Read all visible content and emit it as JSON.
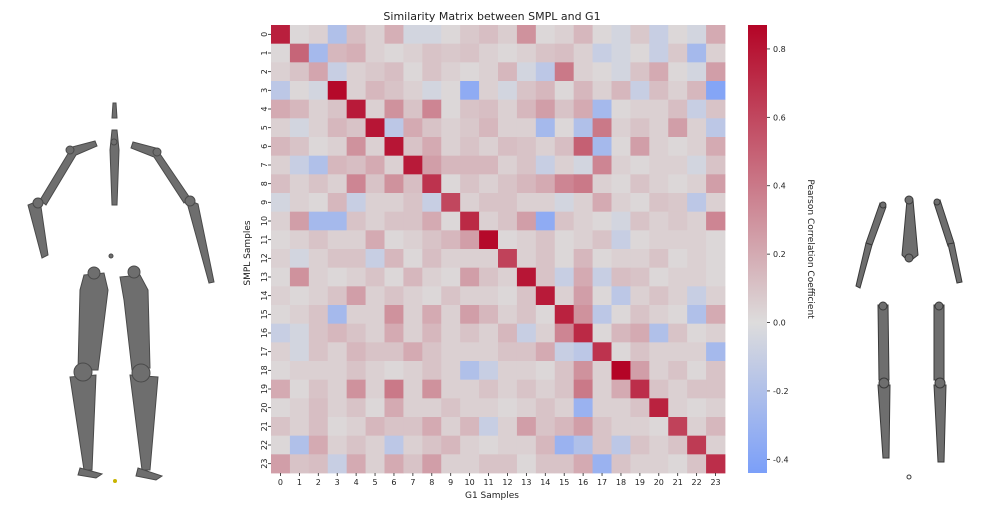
{
  "chart_data": {
    "type": "heatmap",
    "title": "Similarity Matrix between SMPL and G1",
    "xlabel": "G1 Samples",
    "ylabel": "SMPL Samples",
    "x_categories": [
      "0",
      "1",
      "2",
      "3",
      "4",
      "5",
      "6",
      "7",
      "8",
      "9",
      "10",
      "11",
      "12",
      "13",
      "14",
      "15",
      "16",
      "17",
      "18",
      "19",
      "20",
      "21",
      "22",
      "23"
    ],
    "y_categories": [
      "0",
      "1",
      "2",
      "3",
      "4",
      "5",
      "6",
      "7",
      "8",
      "9",
      "10",
      "11",
      "12",
      "13",
      "14",
      "15",
      "16",
      "17",
      "18",
      "19",
      "20",
      "21",
      "22",
      "23"
    ],
    "colorbar": {
      "label": "Pearson Correlation Coefficient",
      "vmin": -0.44,
      "vmax": 0.87,
      "ticks": [
        "-0.4",
        "-0.2",
        "0.0",
        "0.2",
        "0.4",
        "0.6",
        "0.8"
      ],
      "tick_values": [
        -0.4,
        -0.2,
        0.0,
        0.2,
        0.4,
        0.6,
        0.8
      ],
      "colormap": "coolwarm",
      "low_color": "#7b9ff9",
      "mid_color": "#dddcdc",
      "high_color": "#b40426"
    },
    "values": [
      [
        0.76,
        0.02,
        0.05,
        -0.2,
        0.12,
        0.05,
        0.18,
        -0.05,
        -0.05,
        0.02,
        0.08,
        0.12,
        0.06,
        0.3,
        0.02,
        0.05,
        0.15,
        0.02,
        -0.05,
        0.08,
        -0.1,
        0.02,
        -0.05,
        0.2
      ],
      [
        0.02,
        0.48,
        -0.25,
        0.15,
        0.18,
        0.05,
        0.02,
        0.05,
        0.1,
        0.08,
        0.1,
        0.05,
        0.02,
        0.05,
        0.1,
        0.12,
        0.05,
        -0.1,
        -0.05,
        0.02,
        -0.1,
        0.08,
        -0.25,
        0.05
      ],
      [
        0.05,
        0.1,
        0.22,
        -0.1,
        0.05,
        0.08,
        0.12,
        0.02,
        0.1,
        0.05,
        0.02,
        0.05,
        0.15,
        -0.05,
        -0.15,
        0.4,
        0.05,
        0.02,
        -0.05,
        0.1,
        0.2,
        0.02,
        -0.05,
        0.25
      ],
      [
        -0.15,
        0.02,
        -0.05,
        0.85,
        0.05,
        0.15,
        0.1,
        0.05,
        -0.05,
        0.02,
        -0.35,
        0.05,
        -0.05,
        0.1,
        0.15,
        0.02,
        0.15,
        0.05,
        0.15,
        -0.1,
        0.12,
        0.05,
        0.15,
        -0.4
      ],
      [
        0.2,
        0.15,
        0.05,
        0.1,
        0.78,
        0.05,
        0.3,
        0.1,
        0.35,
        0.02,
        0.1,
        0.12,
        0.05,
        0.15,
        0.25,
        0.1,
        0.2,
        -0.25,
        0.02,
        0.05,
        0.05,
        0.12,
        -0.1,
        0.1
      ],
      [
        0.05,
        -0.05,
        0.05,
        0.15,
        0.1,
        0.8,
        -0.15,
        0.2,
        0.1,
        0.05,
        0.08,
        0.15,
        0.05,
        0.05,
        -0.25,
        0.02,
        -0.2,
        0.4,
        0.05,
        0.1,
        0.05,
        0.25,
        0.05,
        -0.15
      ],
      [
        0.15,
        0.1,
        0.02,
        0.05,
        0.3,
        0.05,
        0.8,
        0.1,
        0.2,
        0.05,
        0.1,
        0.05,
        0.12,
        0.1,
        0.05,
        0.12,
        0.5,
        -0.25,
        0.02,
        0.25,
        0.05,
        0.02,
        0.05,
        0.2
      ],
      [
        0.05,
        -0.1,
        -0.2,
        0.15,
        0.12,
        0.2,
        0.05,
        0.78,
        0.25,
        0.15,
        0.15,
        0.15,
        0.05,
        0.1,
        -0.1,
        0.05,
        -0.05,
        0.35,
        0.05,
        0.02,
        0.05,
        0.05,
        -0.05,
        0.1
      ],
      [
        0.12,
        0.05,
        0.1,
        0.05,
        0.35,
        0.1,
        0.3,
        0.12,
        0.68,
        0.02,
        0.1,
        0.05,
        0.1,
        0.15,
        0.2,
        0.35,
        0.4,
        0.05,
        0.02,
        0.1,
        0.05,
        0.02,
        0.05,
        0.25
      ],
      [
        -0.05,
        0.05,
        0.02,
        0.15,
        -0.1,
        0.05,
        0.05,
        0.1,
        -0.1,
        0.6,
        0.05,
        0.1,
        0.1,
        0.05,
        0.05,
        -0.05,
        0.05,
        0.2,
        0.05,
        0.02,
        0.1,
        0.08,
        -0.15,
        0.05
      ],
      [
        0.05,
        0.25,
        -0.25,
        -0.25,
        0.1,
        0.05,
        0.1,
        0.1,
        0.2,
        0.02,
        0.72,
        0.05,
        0.1,
        0.25,
        -0.35,
        0.1,
        0.05,
        0.02,
        -0.05,
        0.1,
        0.05,
        0.08,
        0.05,
        0.35
      ],
      [
        0.02,
        0.05,
        0.1,
        0.05,
        0.05,
        0.2,
        0.02,
        0.05,
        0.1,
        0.15,
        0.25,
        0.85,
        0.02,
        0.05,
        0.1,
        0.02,
        0.05,
        0.1,
        -0.1,
        0.02,
        0.05,
        0.05,
        0.05,
        0.02
      ],
      [
        0.05,
        -0.05,
        0.05,
        0.1,
        0.1,
        -0.1,
        0.15,
        0.02,
        0.12,
        0.05,
        0.05,
        0.05,
        0.62,
        0.05,
        0.1,
        0.02,
        0.15,
        0.02,
        0.05,
        0.05,
        0.1,
        0.02,
        0.05,
        0.02
      ],
      [
        0.02,
        0.3,
        0.05,
        0.02,
        0.05,
        0.1,
        0.02,
        0.15,
        0.05,
        0.02,
        0.25,
        0.1,
        0.05,
        0.8,
        0.1,
        -0.1,
        0.2,
        -0.1,
        0.12,
        0.1,
        0.02,
        0.05,
        0.05,
        0.02
      ],
      [
        0.05,
        0.02,
        0.05,
        0.1,
        0.25,
        0.05,
        0.1,
        0.05,
        0.02,
        0.1,
        0.05,
        0.05,
        0.02,
        0.1,
        0.78,
        0.05,
        0.25,
        0.02,
        -0.15,
        0.05,
        0.1,
        0.05,
        -0.1,
        0.05
      ],
      [
        0.02,
        0.05,
        0.1,
        -0.25,
        0.05,
        0.05,
        0.3,
        0.05,
        0.2,
        0.05,
        0.25,
        0.15,
        0.05,
        0.1,
        0.02,
        0.75,
        0.3,
        -0.15,
        0.02,
        0.1,
        0.05,
        0.02,
        -0.2,
        0.2
      ],
      [
        -0.1,
        -0.05,
        0.1,
        0.15,
        0.1,
        0.05,
        0.2,
        0.05,
        0.15,
        0.05,
        0.1,
        0.05,
        0.15,
        -0.1,
        0.05,
        0.35,
        0.72,
        0.02,
        0.15,
        0.2,
        -0.2,
        0.1,
        0.02,
        0.05
      ],
      [
        0.05,
        -0.05,
        0.1,
        0.05,
        0.15,
        0.1,
        0.1,
        0.2,
        0.1,
        0.05,
        0.05,
        0.05,
        0.1,
        0.1,
        0.2,
        -0.1,
        -0.15,
        0.68,
        0.02,
        0.1,
        0.05,
        0.05,
        0.05,
        -0.25
      ],
      [
        0.02,
        0.05,
        0.05,
        0.05,
        0.1,
        0.05,
        0.02,
        0.05,
        0.1,
        0.05,
        -0.2,
        -0.1,
        0.05,
        0.05,
        0.02,
        0.1,
        0.3,
        0.05,
        0.87,
        0.25,
        0.05,
        0.1,
        0.02,
        0.1
      ],
      [
        0.2,
        0.02,
        0.1,
        0.05,
        0.3,
        0.05,
        0.4,
        0.05,
        0.3,
        0.05,
        0.05,
        0.1,
        0.05,
        0.1,
        0.05,
        0.1,
        0.4,
        0.05,
        0.2,
        0.7,
        0.1,
        0.05,
        0.1,
        0.1
      ],
      [
        0.02,
        0.05,
        0.12,
        0.05,
        0.1,
        0.02,
        0.2,
        0.05,
        0.05,
        0.1,
        0.05,
        0.05,
        0.02,
        0.05,
        0.1,
        0.05,
        -0.3,
        0.05,
        0.05,
        0.1,
        0.75,
        0.05,
        0.02,
        0.05
      ],
      [
        0.1,
        0.05,
        0.12,
        0.02,
        0.05,
        0.15,
        0.1,
        0.1,
        0.2,
        0.05,
        0.15,
        -0.1,
        0.05,
        0.25,
        0.1,
        0.15,
        0.25,
        0.1,
        0.05,
        0.05,
        0.02,
        0.62,
        0.05,
        0.15
      ],
      [
        0.02,
        -0.2,
        0.2,
        0.05,
        0.1,
        0.05,
        -0.15,
        0.05,
        0.1,
        0.15,
        0.05,
        0.02,
        0.05,
        0.05,
        0.15,
        -0.3,
        -0.2,
        0.1,
        -0.15,
        0.1,
        0.05,
        0.1,
        0.65,
        0.05
      ],
      [
        0.25,
        0.1,
        0.12,
        -0.1,
        0.2,
        0.05,
        0.2,
        0.1,
        0.25,
        0.05,
        0.05,
        0.1,
        0.1,
        0.02,
        0.1,
        0.1,
        0.2,
        -0.3,
        0.1,
        0.05,
        0.05,
        0.02,
        0.1,
        0.7
      ]
    ]
  }
}
